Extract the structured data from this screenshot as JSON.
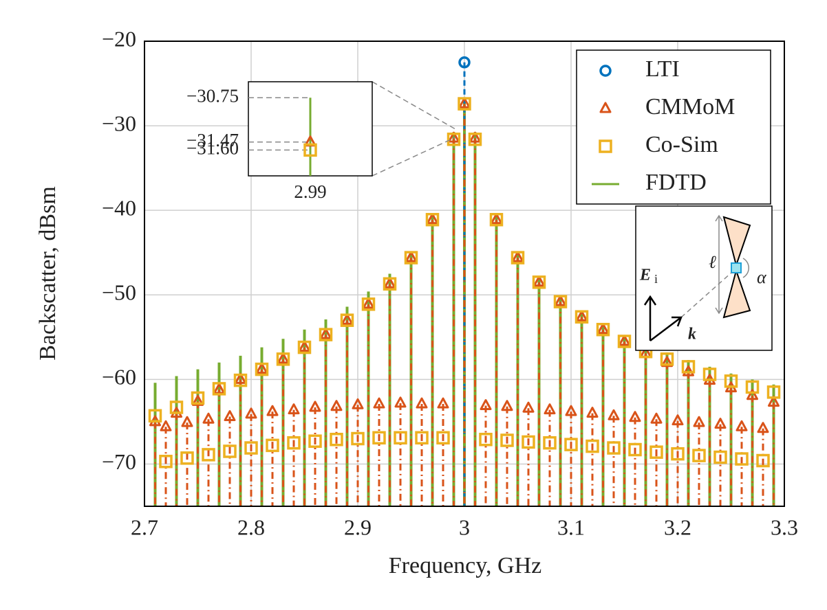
{
  "chart_data": {
    "type": "stem",
    "xlabel": "Frequency, GHz",
    "ylabel": "Backscatter, dBsm",
    "xlim": [
      2.7,
      3.3
    ],
    "ylim": [
      -75,
      -20
    ],
    "xticks": [
      2.7,
      2.8,
      2.9,
      3,
      3.1,
      3.2,
      3.3
    ],
    "yticks": [
      {
        "value": -20,
        "label": "−20"
      },
      {
        "value": -30,
        "label": "−30"
      },
      {
        "value": -40,
        "label": "−40"
      },
      {
        "value": -50,
        "label": "−50"
      },
      {
        "value": -60,
        "label": "−60"
      },
      {
        "value": -70,
        "label": "−70"
      }
    ],
    "grid": true,
    "legend": "upper right",
    "series": [
      {
        "name": "LTI",
        "color": "#0072bd",
        "marker": "circle",
        "x": [
          3.0
        ],
        "values": [
          -22.5
        ]
      },
      {
        "name": "CMMoM",
        "color": "#d95319",
        "marker": "triangle",
        "x": [
          2.71,
          2.72,
          2.73,
          2.74,
          2.75,
          2.76,
          2.77,
          2.78,
          2.79,
          2.8,
          2.81,
          2.82,
          2.83,
          2.84,
          2.85,
          2.86,
          2.87,
          2.88,
          2.89,
          2.9,
          2.91,
          2.92,
          2.93,
          2.94,
          2.95,
          2.96,
          2.97,
          2.98,
          2.99,
          3.0,
          3.01,
          3.02,
          3.03,
          3.04,
          3.05,
          3.06,
          3.07,
          3.08,
          3.09,
          3.1,
          3.11,
          3.12,
          3.13,
          3.14,
          3.15,
          3.16,
          3.17,
          3.18,
          3.19,
          3.2,
          3.21,
          3.22,
          3.23,
          3.24,
          3.25,
          3.26,
          3.27,
          3.28,
          3.29
        ],
        "values": [
          -65.0,
          -65.6,
          -64.0,
          -65.1,
          -62.6,
          -64.7,
          -61.2,
          -64.4,
          -60.0,
          -64.1,
          -58.8,
          -63.8,
          -57.6,
          -63.6,
          -56.2,
          -63.3,
          -54.7,
          -63.2,
          -53.0,
          -63.0,
          -51.1,
          -62.9,
          -48.7,
          -62.8,
          -45.6,
          -62.9,
          -41.1,
          -62.9,
          -31.47,
          -27.4,
          -31.47,
          -63.1,
          -41.1,
          -63.2,
          -45.6,
          -63.4,
          -48.5,
          -63.6,
          -50.8,
          -63.8,
          -52.6,
          -64.0,
          -54.1,
          -64.3,
          -55.5,
          -64.5,
          -56.9,
          -64.7,
          -58.0,
          -64.9,
          -59.1,
          -65.1,
          -60.1,
          -65.3,
          -61.0,
          -65.6,
          -61.9,
          -65.8,
          -62.7
        ]
      },
      {
        "name": "Co-Sim",
        "color": "#edb120",
        "marker": "square",
        "x": [
          2.71,
          2.72,
          2.73,
          2.74,
          2.75,
          2.76,
          2.77,
          2.78,
          2.79,
          2.8,
          2.81,
          2.82,
          2.83,
          2.84,
          2.85,
          2.86,
          2.87,
          2.88,
          2.89,
          2.9,
          2.91,
          2.92,
          2.93,
          2.94,
          2.95,
          2.96,
          2.97,
          2.98,
          2.99,
          3.0,
          3.01,
          3.02,
          3.03,
          3.04,
          3.05,
          3.06,
          3.07,
          3.08,
          3.09,
          3.1,
          3.11,
          3.12,
          3.13,
          3.14,
          3.15,
          3.16,
          3.17,
          3.18,
          3.19,
          3.2,
          3.21,
          3.22,
          3.23,
          3.24,
          3.25,
          3.26,
          3.27,
          3.28,
          3.29
        ],
        "values": [
          -64.3,
          -69.7,
          -63.3,
          -69.3,
          -62.2,
          -68.9,
          -61.1,
          -68.5,
          -60.1,
          -68.1,
          -58.8,
          -67.8,
          -57.6,
          -67.5,
          -56.2,
          -67.3,
          -54.7,
          -67.1,
          -53.0,
          -67.0,
          -51.1,
          -66.9,
          -48.7,
          -66.9,
          -45.6,
          -66.9,
          -41.1,
          -66.9,
          -31.6,
          -27.4,
          -31.6,
          -67.1,
          -41.1,
          -67.2,
          -45.6,
          -67.4,
          -48.5,
          -67.5,
          -50.8,
          -67.7,
          -52.6,
          -67.9,
          -54.1,
          -68.1,
          -55.5,
          -68.3,
          -56.7,
          -68.6,
          -57.6,
          -68.8,
          -58.5,
          -69.0,
          -59.4,
          -69.2,
          -60.2,
          -69.4,
          -60.9,
          -69.6,
          -61.5
        ]
      },
      {
        "name": "FDTD",
        "color": "#77ac30",
        "marker": "line",
        "x": [
          2.71,
          2.73,
          2.75,
          2.77,
          2.79,
          2.81,
          2.83,
          2.85,
          2.87,
          2.89,
          2.91,
          2.93,
          2.95,
          2.97,
          2.99,
          3.0,
          3.01,
          3.03,
          3.05,
          3.07,
          3.09,
          3.11,
          3.13,
          3.15,
          3.17,
          3.19,
          3.21,
          3.23,
          3.25,
          3.27,
          3.29
        ],
        "values": [
          -60.4,
          -59.6,
          -58.8,
          -58.0,
          -57.2,
          -56.2,
          -55.2,
          -54.1,
          -52.9,
          -51.4,
          -49.6,
          -47.5,
          -45.0,
          -40.6,
          -30.75,
          -27.0,
          -30.75,
          -40.6,
          -45.0,
          -47.9,
          -50.2,
          -52.0,
          -53.5,
          -54.8,
          -55.8,
          -56.8,
          -57.7,
          -58.5,
          -59.3,
          -60.0,
          -60.6
        ]
      }
    ],
    "inset": {
      "xlim": [
        2.989,
        2.991
      ],
      "ylim": [
        -32.02,
        -30.49
      ],
      "xticks": [
        2.99
      ],
      "yticks": [
        {
          "value": -30.75,
          "label": "−30.75"
        },
        {
          "value": -31.47,
          "label": "−31.47"
        },
        {
          "value": -31.6,
          "label": "−31.60"
        }
      ]
    },
    "diagram_labels": {
      "length": "ℓ",
      "angle": "α",
      "field": "E",
      "field_sub": "i",
      "wave": "k"
    }
  }
}
